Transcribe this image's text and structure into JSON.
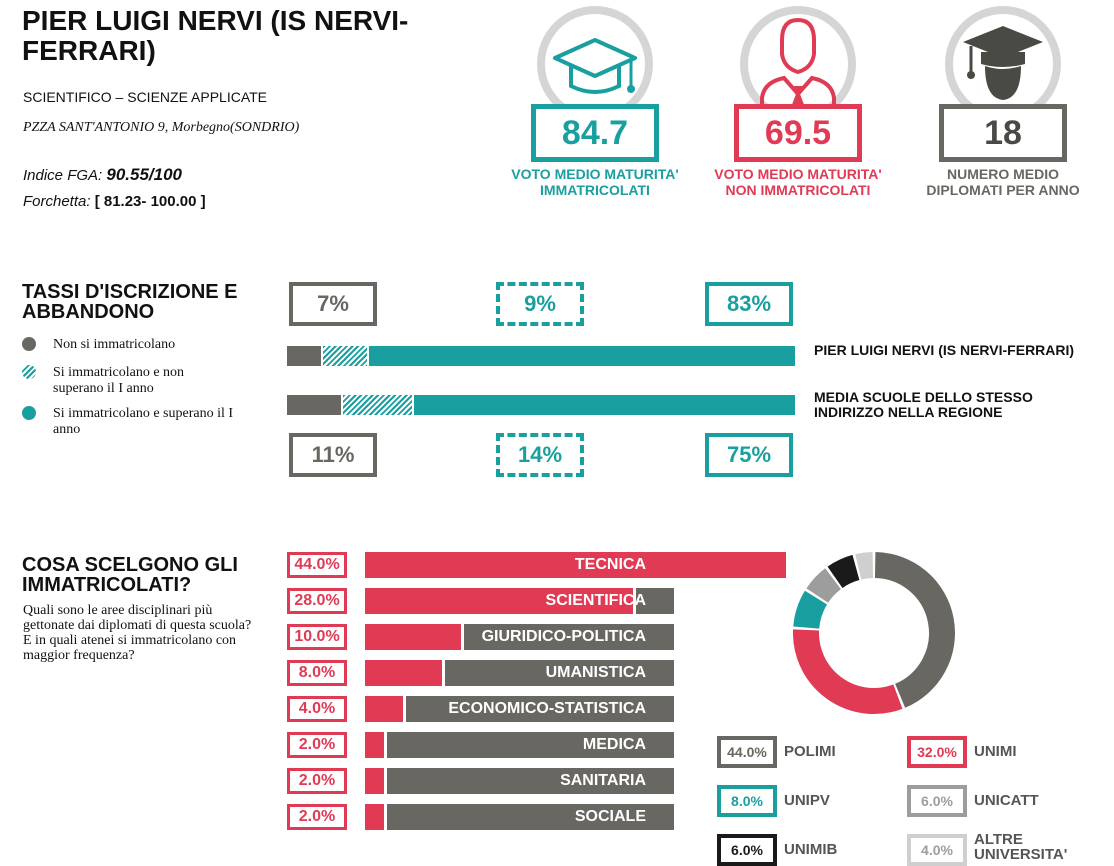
{
  "school": {
    "title": "PIER LUIGI NERVI (IS NERVI-FERRARI)",
    "type": "SCIENTIFICO – SCIENZE APPLICATE",
    "address": "PZZA SANT'ANTONIO 9, Morbegno(SONDRIO)",
    "fga_label": "Indice FGA:",
    "fga_value": "90.55/100",
    "fork_label": "Forchetta:",
    "fork_value": "[ 81.23- 100.00 ]"
  },
  "stats": [
    {
      "value": "84.7",
      "label": "VOTO MEDIO MATURITA' IMMATRICOLATI",
      "color": "#1a9fa0",
      "icon": "graduation-cap-icon"
    },
    {
      "value": "69.5",
      "label": "VOTO MEDIO MATURITA' NON IMMATRICOLATI",
      "color": "#e03a54",
      "icon": "person-tie-icon"
    },
    {
      "value": "18",
      "label": "NUMERO MEDIO DIPLOMATI PER ANNO",
      "color": "#686761",
      "icon": "graduate-person-icon"
    }
  ],
  "enrollment": {
    "title": "TASSI D'ISCRIZIONE E ABBANDONO",
    "legend": [
      {
        "label": "Non si immatricolano",
        "color": "#686761",
        "pattern": "solid"
      },
      {
        "label": "Si immatricolano e non superano il I anno",
        "color": "#1a9fa0",
        "pattern": "hatched"
      },
      {
        "label": "Si immatricolano e superano il I anno",
        "color": "#1a9fa0",
        "pattern": "solid"
      }
    ],
    "school_row": {
      "label": "PIER LUIGI NERVI (IS NERVI-FERRARI)",
      "values": [
        7,
        9,
        83
      ],
      "labels": [
        "7%",
        "9%",
        "83%"
      ]
    },
    "region_row": {
      "label": "MEDIA SCUOLE DELLO STESSO INDIRIZZO NELLA REGIONE",
      "values": [
        11,
        14,
        75
      ],
      "labels": [
        "11%",
        "14%",
        "75%"
      ]
    }
  },
  "choices": {
    "title": "COSA SCELGONO GLI IMMATRICOLATI?",
    "description": "Quali sono le aree disciplinari più gettonate dai diplomati di questa scuola? E in quali atenei si immatricolano con maggior frequenza?",
    "areas": [
      {
        "name": "TECNICA",
        "value": 44.0,
        "label": "44.0%"
      },
      {
        "name": "SCIENTIFICA",
        "value": 28.0,
        "label": "28.0%"
      },
      {
        "name": "GIURIDICO-POLITICA",
        "value": 10.0,
        "label": "10.0%"
      },
      {
        "name": "UMANISTICA",
        "value": 8.0,
        "label": "8.0%"
      },
      {
        "name": "ECONOMICO-STATISTICA",
        "value": 4.0,
        "label": "4.0%"
      },
      {
        "name": "MEDICA",
        "value": 2.0,
        "label": "2.0%"
      },
      {
        "name": "SANITARIA",
        "value": 2.0,
        "label": "2.0%"
      },
      {
        "name": "SOCIALE",
        "value": 2.0,
        "label": "2.0%"
      }
    ],
    "universities": [
      {
        "name": "POLIMI",
        "value": 44.0,
        "label": "44.0%",
        "color": "#686761"
      },
      {
        "name": "UNIMI",
        "value": 32.0,
        "label": "32.0%",
        "color": "#e03a54"
      },
      {
        "name": "UNIPV",
        "value": 8.0,
        "label": "8.0%",
        "color": "#1a9fa0"
      },
      {
        "name": "UNICATT",
        "value": 6.0,
        "label": "6.0%",
        "color": "#9d9d9d"
      },
      {
        "name": "UNIMIB",
        "value": 6.0,
        "label": "6.0%",
        "color": "#1a1a1a"
      },
      {
        "name": "ALTRE UNIVERSITA'",
        "value": 4.0,
        "label": "4.0%",
        "color": "#cfcfcf"
      }
    ]
  }
}
